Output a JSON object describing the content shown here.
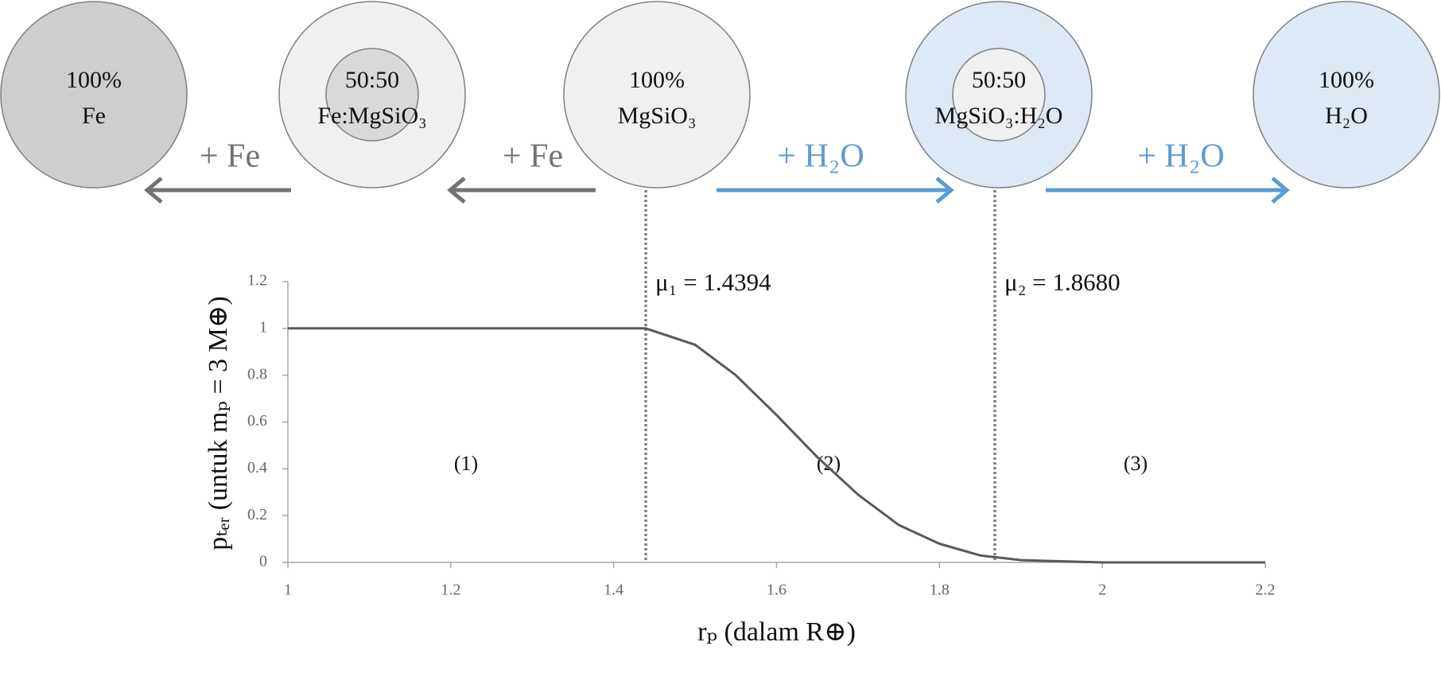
{
  "diagram": {
    "compositions": [
      {
        "lines": [
          "100%",
          "Fe"
        ],
        "fill": "#cfcdce"
      },
      {
        "lines": [
          "50:50",
          "Fe:MgSiO₃"
        ],
        "fill": "#f0f0f0",
        "inner_fill": "#d9d9d9"
      },
      {
        "lines": [
          "100%",
          "MgSiO₃"
        ],
        "fill": "#f0f0f0"
      },
      {
        "lines": [
          "50:50",
          "MgSiO₃:H₂O"
        ],
        "fill": "#dde9f5",
        "inner_fill": "#f0f0f0"
      },
      {
        "lines": [
          "100%",
          "H₂O"
        ],
        "fill": "#dde9f5"
      }
    ],
    "arrows": [
      {
        "label": "+ Fe",
        "color": "#767171"
      },
      {
        "label": "+ Fe",
        "color": "#767171"
      },
      {
        "label": "+ H₂O",
        "color": "#5b9bd5"
      },
      {
        "label": "+ H₂O",
        "color": "#5b9bd5"
      }
    ]
  },
  "chart_data": {
    "type": "line",
    "xlabel": "rₚ (dalam R⊕)",
    "ylabel": "pₜₑᵣ (untuk mₚ = 3 M⊕)",
    "x": [
      1.0,
      1.2,
      1.4394,
      1.5,
      1.55,
      1.6,
      1.65,
      1.7,
      1.75,
      1.8,
      1.85,
      1.9,
      2.0,
      2.1,
      2.2
    ],
    "values": [
      1,
      1,
      1,
      0.93,
      0.8,
      0.63,
      0.45,
      0.29,
      0.16,
      0.08,
      0.03,
      0.01,
      0,
      0,
      0
    ],
    "color": "#595959",
    "xlim": [
      1,
      2.2
    ],
    "ylim": [
      0,
      1.2
    ],
    "xticks": [
      1,
      1.2,
      1.4,
      1.6,
      1.8,
      2,
      2.2
    ],
    "yticks": [
      0,
      0.2,
      0.4,
      0.6,
      0.8,
      1,
      1.2
    ],
    "annotations": [
      {
        "label": "μ₁ = 1.4394",
        "x": 1.4394
      },
      {
        "label": "μ₂ = 1.8680",
        "x": 1.868
      }
    ],
    "regions": [
      "(1)",
      "(2)",
      "(3)"
    ]
  }
}
